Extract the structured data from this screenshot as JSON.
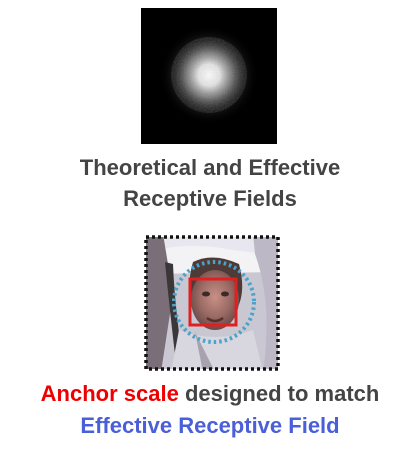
{
  "diagram": {
    "top_figure": {
      "icon": "effective-receptive-field-heatmap",
      "background": "#000000"
    },
    "top_caption": {
      "line1": "Theoretical and Effective",
      "line2": "Receptive Fields"
    },
    "bottom_figure": {
      "icon": "face-with-anchor-box",
      "theoretical_rf_color": "#111111",
      "effective_rf_color": "#4aa3c8",
      "anchor_color": "#e02020"
    },
    "bottom_caption": {
      "highlight": "Anchor scale",
      "rest": " designed to match",
      "line2": "Effective Receptive Field"
    },
    "colors": {
      "text": "#444444",
      "highlight_red": "#ee0000",
      "highlight_blue": "#4a5fd8"
    }
  }
}
